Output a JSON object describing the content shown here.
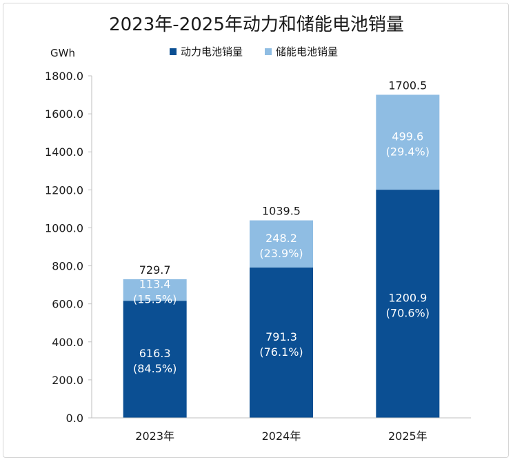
{
  "chart_data": {
    "type": "bar",
    "stacked": true,
    "title": "2023年-2025年动力和储能电池销量",
    "unit": "GWh",
    "categories": [
      "2023年",
      "2024年",
      "2025年"
    ],
    "series": [
      {
        "name": "动力电池销量",
        "color": "#0b4f93",
        "values": [
          616.3,
          791.3,
          1200.9
        ],
        "labels": [
          "616.3",
          "791.3",
          "1200.9"
        ],
        "shares": [
          "(84.5%)",
          "(76.1%)",
          "(70.6%)"
        ]
      },
      {
        "name": "储能电池销量",
        "color": "#8fbde3",
        "values": [
          113.4,
          248.2,
          499.6
        ],
        "labels": [
          "113.4",
          "248.2",
          "499.6"
        ],
        "shares": [
          "(15.5%)",
          "(23.9%)",
          "(29.4%)"
        ]
      }
    ],
    "totals": [
      "729.7",
      "1039.5",
      "1700.5"
    ],
    "ylim": [
      0,
      1800
    ],
    "yticks": [
      "0.0",
      "200.0",
      "400.0",
      "600.0",
      "800.0",
      "1000.0",
      "1200.0",
      "1400.0",
      "1600.0",
      "1800.0"
    ],
    "grid": false,
    "legend": "top-center"
  }
}
